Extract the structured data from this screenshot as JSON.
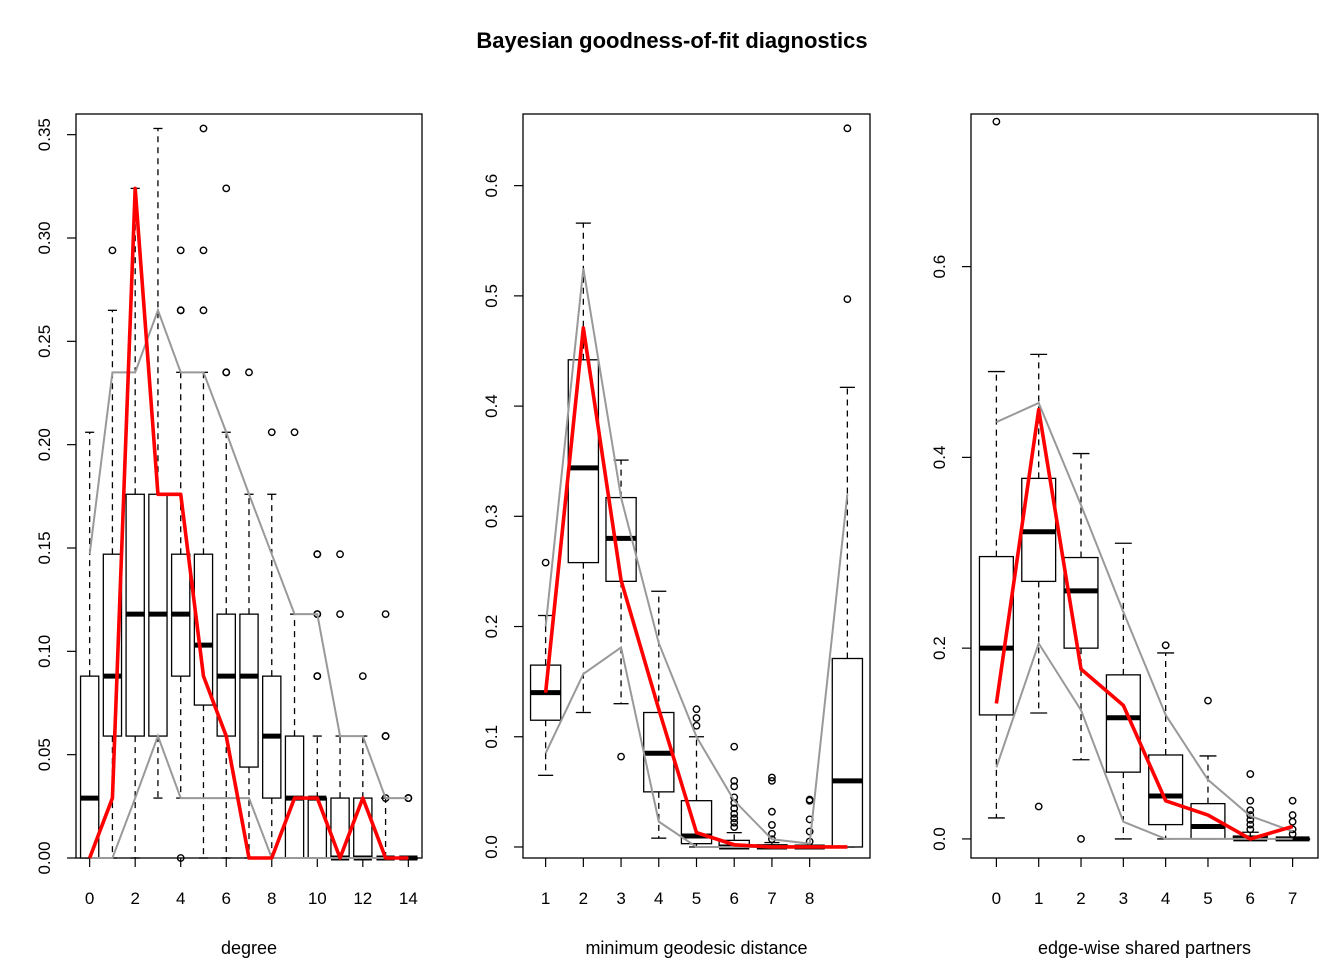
{
  "title": "Bayesian goodness-of-fit diagnostics",
  "colors": {
    "observed": "#ff0000",
    "bounds": "#999999",
    "box": "#000000"
  },
  "chart_data": [
    {
      "type": "boxplot",
      "xlabel": "degree",
      "ylabel": "",
      "ylim": [
        0,
        0.36
      ],
      "yticks": [
        "0.00",
        "0.05",
        "0.10",
        "0.15",
        "0.20",
        "0.25",
        "0.30",
        "0.35"
      ],
      "categories": [
        "0",
        "1",
        "2",
        "3",
        "4",
        "5",
        "6",
        "7",
        "8",
        "9",
        "10",
        "11",
        "12",
        "13",
        "14"
      ],
      "xticks_shown": [
        "0",
        "2",
        "4",
        "6",
        "8",
        "10",
        "12",
        "14"
      ],
      "boxes": [
        {
          "whisker_low": 0,
          "q1": 0,
          "median": 0.029,
          "q3": 0.088,
          "whisker_high": 0.206,
          "outliers": []
        },
        {
          "whisker_low": 0,
          "q1": 0.059,
          "median": 0.088,
          "q3": 0.147,
          "whisker_high": 0.265,
          "outliers": [
            0.294
          ]
        },
        {
          "whisker_low": 0,
          "q1": 0.059,
          "median": 0.118,
          "q3": 0.176,
          "whisker_high": 0.324,
          "outliers": []
        },
        {
          "whisker_low": 0.029,
          "q1": 0.059,
          "median": 0.118,
          "q3": 0.176,
          "whisker_high": 0.353,
          "outliers": []
        },
        {
          "whisker_low": 0.029,
          "q1": 0.088,
          "median": 0.118,
          "q3": 0.147,
          "whisker_high": 0.235,
          "outliers": [
            0,
            0.265,
            0.265,
            0.294
          ]
        },
        {
          "whisker_low": 0,
          "q1": 0.074,
          "median": 0.103,
          "q3": 0.147,
          "whisker_high": 0.235,
          "outliers": [
            0.265,
            0.294,
            0.353
          ]
        },
        {
          "whisker_low": 0,
          "q1": 0.059,
          "median": 0.088,
          "q3": 0.118,
          "whisker_high": 0.206,
          "outliers": [
            0.235,
            0.235,
            0.324
          ]
        },
        {
          "whisker_low": 0,
          "q1": 0.044,
          "median": 0.088,
          "q3": 0.118,
          "whisker_high": 0.176,
          "outliers": [
            0.235
          ]
        },
        {
          "whisker_low": 0,
          "q1": 0.029,
          "median": 0.059,
          "q3": 0.088,
          "whisker_high": 0.176,
          "outliers": [
            0.206
          ]
        },
        {
          "whisker_low": 0,
          "q1": 0,
          "median": 0.029,
          "q3": 0.059,
          "whisker_high": 0.118,
          "outliers": [
            0.206
          ]
        },
        {
          "whisker_low": 0,
          "q1": 0,
          "median": 0.029,
          "q3": 0.029,
          "whisker_high": 0.059,
          "outliers": [
            0.088,
            0.088,
            0.118,
            0.118,
            0.147,
            0.147
          ]
        },
        {
          "whisker_low": 0,
          "q1": 0,
          "median": 0,
          "q3": 0.029,
          "whisker_high": 0.059,
          "outliers": [
            0.118,
            0.147
          ]
        },
        {
          "whisker_low": 0,
          "q1": 0,
          "median": 0,
          "q3": 0.029,
          "whisker_high": 0.059,
          "outliers": [
            0.088
          ]
        },
        {
          "whisker_low": 0,
          "q1": 0,
          "median": 0,
          "q3": 0,
          "whisker_high": 0.029,
          "outliers": [
            0.029,
            0.059,
            0.059,
            0.118
          ]
        },
        {
          "whisker_low": 0,
          "q1": 0,
          "median": 0,
          "q3": 0,
          "whisker_high": 0,
          "outliers": [
            0.029,
            0.029
          ]
        }
      ],
      "observed": [
        0,
        0.029,
        0.324,
        0.176,
        0.176,
        0.088,
        0.059,
        0,
        0,
        0.029,
        0.029,
        0,
        0.029,
        0,
        0
      ],
      "lower_bound": [
        0,
        0,
        0.029,
        0.059,
        0.029,
        0.029,
        0.029,
        0.029,
        0,
        0,
        0,
        0,
        0,
        0,
        0
      ],
      "upper_bound": [
        0.147,
        0.235,
        0.235,
        0.265,
        0.235,
        0.235,
        0.206,
        0.176,
        0.147,
        0.118,
        0.118,
        0.059,
        0.059,
        0.029,
        0.029
      ]
    },
    {
      "type": "boxplot",
      "xlabel": "minimum geodesic distance",
      "ylabel": "",
      "ylim": [
        -0.01,
        0.665
      ],
      "yticks": [
        "0.0",
        "0.1",
        "0.2",
        "0.3",
        "0.4",
        "0.5",
        "0.6"
      ],
      "categories": [
        "1",
        "2",
        "3",
        "4",
        "5",
        "6",
        "7",
        "8",
        ""
      ],
      "xticks_shown": [
        "1",
        "2",
        "3",
        "4",
        "5",
        "6",
        "7",
        "8"
      ],
      "boxes": [
        {
          "whisker_low": 0.065,
          "q1": 0.115,
          "median": 0.14,
          "q3": 0.165,
          "whisker_high": 0.21,
          "outliers": [
            0.258
          ]
        },
        {
          "whisker_low": 0.122,
          "q1": 0.258,
          "median": 0.344,
          "q3": 0.442,
          "whisker_high": 0.566,
          "outliers": []
        },
        {
          "whisker_low": 0.13,
          "q1": 0.241,
          "median": 0.28,
          "q3": 0.317,
          "whisker_high": 0.351,
          "outliers": [
            0.082
          ]
        },
        {
          "whisker_low": 0.008,
          "q1": 0.05,
          "median": 0.085,
          "q3": 0.122,
          "whisker_high": 0.232,
          "outliers": []
        },
        {
          "whisker_low": 0,
          "q1": 0.003,
          "median": 0.01,
          "q3": 0.042,
          "whisker_high": 0.1,
          "outliers": [
            0.11,
            0.117,
            0.125
          ]
        },
        {
          "whisker_low": 0,
          "q1": 0,
          "median": 0,
          "q3": 0.006,
          "whisker_high": 0.013,
          "outliers": [
            0.018,
            0.022,
            0.026,
            0.03,
            0.035,
            0.04,
            0.045,
            0.055,
            0.06,
            0.091
          ]
        },
        {
          "whisker_low": 0,
          "q1": 0,
          "median": 0,
          "q3": 0.002,
          "whisker_high": 0.004,
          "outliers": [
            0.007,
            0.012,
            0.02,
            0.032,
            0.06,
            0.063
          ]
        },
        {
          "whisker_low": 0,
          "q1": 0,
          "median": 0,
          "q3": 0,
          "whisker_high": 0,
          "outliers": [
            0.005,
            0.014,
            0.025,
            0.042,
            0.043
          ]
        },
        {
          "whisker_low": 0,
          "q1": 0,
          "median": 0.06,
          "q3": 0.171,
          "whisker_high": 0.417,
          "outliers": [
            0.497,
            0.652
          ]
        }
      ],
      "observed": [
        0.14,
        0.471,
        0.242,
        0.125,
        0.013,
        0.002,
        0,
        0,
        0
      ],
      "lower_bound": [
        0.085,
        0.157,
        0.181,
        0.023,
        0,
        0,
        0,
        0,
        0
      ],
      "upper_bound": [
        0.2,
        0.525,
        0.317,
        0.185,
        0.1,
        0.042,
        0.007,
        0.003,
        0.32
      ]
    },
    {
      "type": "boxplot",
      "xlabel": "edge-wise shared partners",
      "ylabel": "",
      "ylim": [
        -0.02,
        0.76
      ],
      "yticks": [
        "0.0",
        "0.2",
        "0.4",
        "0.6"
      ],
      "categories": [
        "0",
        "1",
        "2",
        "3",
        "4",
        "5",
        "6",
        "7"
      ],
      "xticks_shown": [
        "0",
        "1",
        "2",
        "3",
        "4",
        "5",
        "6",
        "7"
      ],
      "boxes": [
        {
          "whisker_low": 0.022,
          "q1": 0.13,
          "median": 0.2,
          "q3": 0.296,
          "whisker_high": 0.49,
          "outliers": [
            0.752
          ]
        },
        {
          "whisker_low": 0.132,
          "q1": 0.27,
          "median": 0.322,
          "q3": 0.378,
          "whisker_high": 0.508,
          "outliers": [
            0.034
          ]
        },
        {
          "whisker_low": 0.083,
          "q1": 0.2,
          "median": 0.26,
          "q3": 0.295,
          "whisker_high": 0.404,
          "outliers": [
            0
          ]
        },
        {
          "whisker_low": 0,
          "q1": 0.07,
          "median": 0.127,
          "q3": 0.172,
          "whisker_high": 0.31,
          "outliers": []
        },
        {
          "whisker_low": 0,
          "q1": 0.015,
          "median": 0.045,
          "q3": 0.088,
          "whisker_high": 0.195,
          "outliers": [
            0.203
          ]
        },
        {
          "whisker_low": 0,
          "q1": 0,
          "median": 0.013,
          "q3": 0.037,
          "whisker_high": 0.087,
          "outliers": [
            0.145
          ]
        },
        {
          "whisker_low": 0,
          "q1": 0,
          "median": 0,
          "q3": 0.003,
          "whisker_high": 0.007,
          "outliers": [
            0.01,
            0.015,
            0.02,
            0.025,
            0.03,
            0.04,
            0.068
          ]
        },
        {
          "whisker_low": 0,
          "q1": 0,
          "median": 0,
          "q3": 0,
          "whisker_high": 0,
          "outliers": [
            0.005,
            0.01,
            0.018,
            0.025,
            0.04
          ]
        }
      ],
      "observed": [
        0.142,
        0.45,
        0.178,
        0.14,
        0.04,
        0.025,
        0,
        0.013
      ],
      "lower_bound": [
        0.075,
        0.205,
        0.135,
        0.018,
        0,
        0,
        0,
        0
      ],
      "upper_bound": [
        0.437,
        0.457,
        0.35,
        0.238,
        0.13,
        0.062,
        0.024,
        0.008
      ]
    }
  ]
}
